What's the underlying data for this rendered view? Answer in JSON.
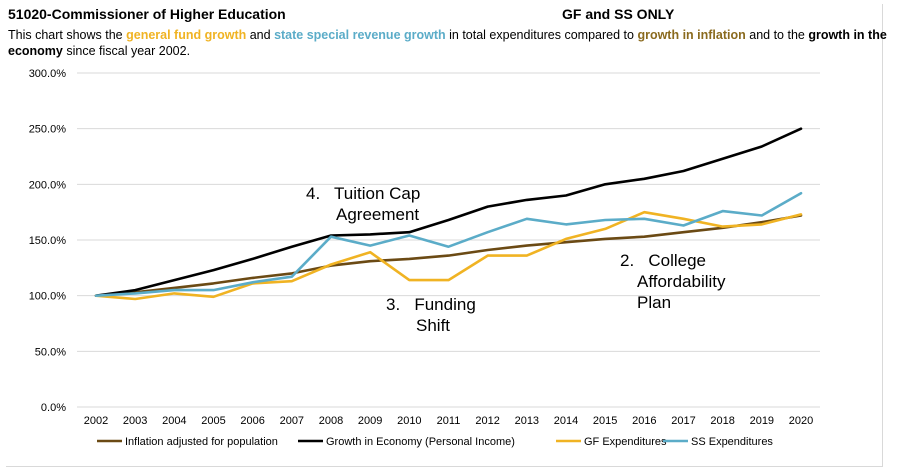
{
  "header": {
    "title": "51020-Commissioner of Higher Education",
    "title_right": "GF and SS ONLY",
    "desc_1": "This chart shows the ",
    "desc_gf": "general fund growth",
    "desc_2": "  and ",
    "desc_ss": "state special revenue growth",
    "desc_3": " in total expenditures compared to ",
    "desc_infl": "growth in inflation",
    "desc_4": " and to the ",
    "desc_econ": "growth in the economy",
    "desc_5": " since fiscal year 2002."
  },
  "colors": {
    "gf": "#F0B323",
    "ss": "#5BACC8",
    "inflation": "#6B4A14",
    "economy": "#000000",
    "gridline": "#d9d9d9",
    "axis_text": "#000000"
  },
  "chart_data": {
    "type": "line",
    "x": [
      "2002",
      "2003",
      "2004",
      "2005",
      "2006",
      "2007",
      "2008",
      "2009",
      "2010",
      "2011",
      "2012",
      "2013",
      "2014",
      "2015",
      "2016",
      "2017",
      "2018",
      "2019",
      "2020"
    ],
    "ylim": [
      0,
      300
    ],
    "yticks": [
      "0.0%",
      "50.0%",
      "100.0%",
      "150.0%",
      "200.0%",
      "250.0%",
      "300.0%"
    ],
    "ytick_values": [
      0,
      50,
      100,
      150,
      200,
      250,
      300
    ],
    "series": [
      {
        "key": "inflation",
        "name": "Inflation adjusted for population",
        "values": [
          100,
          103,
          107,
          111,
          116,
          120,
          127,
          131,
          133,
          136,
          141,
          145,
          148,
          151,
          153,
          157,
          161,
          166,
          172
        ]
      },
      {
        "key": "economy",
        "name": "Growth in Economy (Personal Income)",
        "values": [
          100,
          105,
          114,
          123,
          133,
          144,
          154,
          155,
          157,
          168,
          180,
          186,
          190,
          200,
          205,
          212,
          223,
          234,
          250
        ]
      },
      {
        "key": "gf",
        "name": "GF Expenditures",
        "values": [
          100,
          97,
          102,
          99,
          111,
          113,
          128,
          139,
          114,
          114,
          136,
          136,
          151,
          160,
          175,
          169,
          162,
          164,
          173
        ]
      },
      {
        "key": "ss",
        "name": "SS Expenditures",
        "values": [
          100,
          102,
          105,
          105,
          112,
          117,
          153,
          145,
          154,
          144,
          157,
          169,
          164,
          168,
          169,
          163,
          176,
          172,
          192
        ]
      }
    ],
    "annotations": [
      {
        "line1": "4.   Tuition Cap",
        "line2": "Agreement"
      },
      {
        "line1": "3.   Funding",
        "line2": "Shift"
      },
      {
        "line1": "2.   College",
        "line2": "Affordability",
        "line3": "Plan"
      }
    ]
  }
}
